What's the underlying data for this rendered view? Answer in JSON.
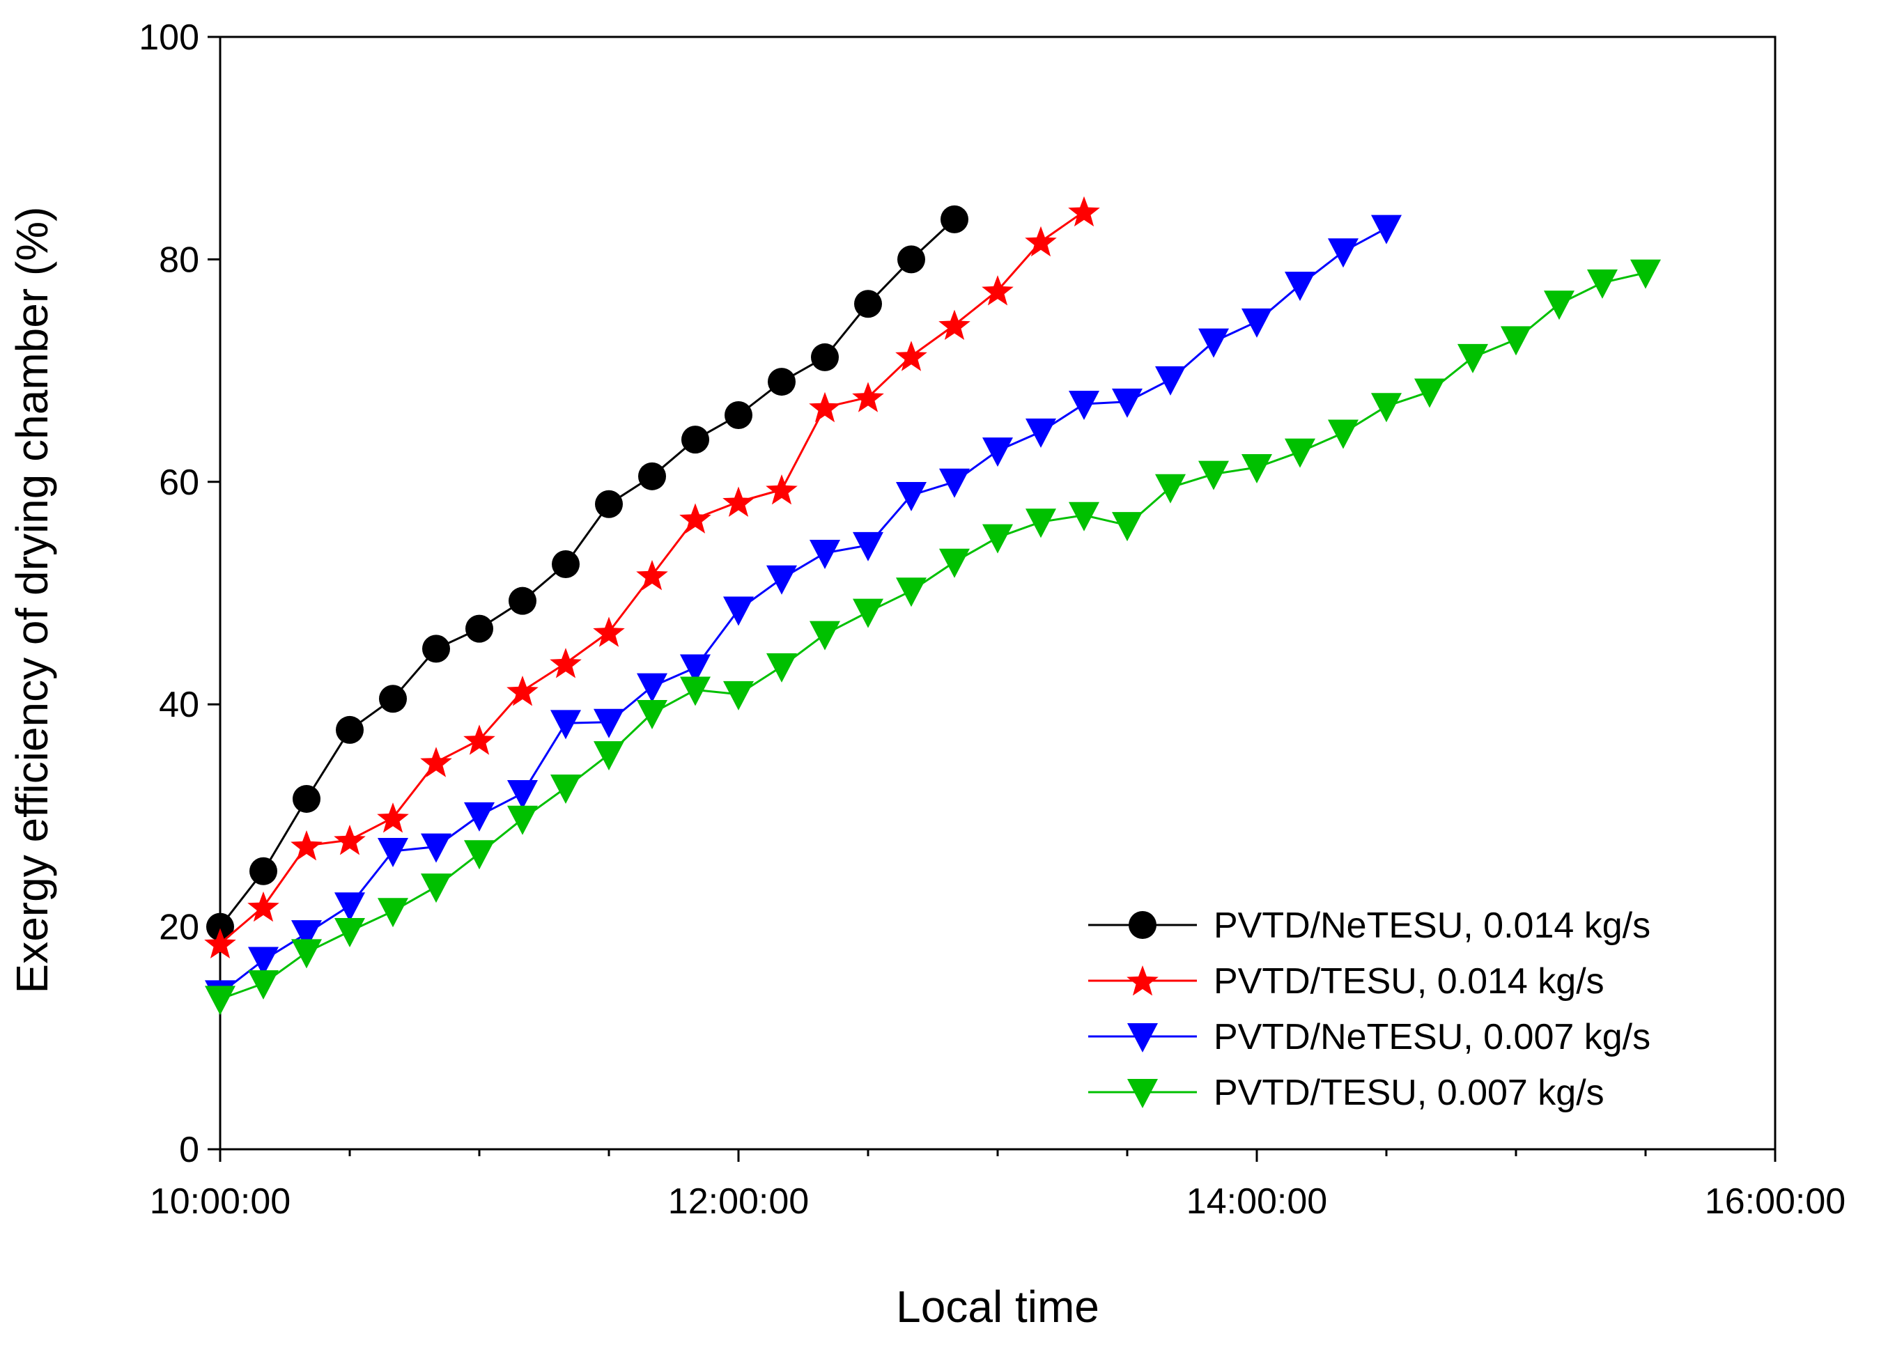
{
  "chart_data": {
    "type": "line",
    "title": "",
    "xlabel": "Local time",
    "ylabel": "Exergy efficiency of drying chamber (%)",
    "xlim": [
      0,
      360
    ],
    "ylim": [
      0,
      100
    ],
    "x_ticks": [
      {
        "value": 0,
        "label": "10:00:00"
      },
      {
        "value": 120,
        "label": "12:00:00"
      },
      {
        "value": 240,
        "label": "14:00:00"
      },
      {
        "value": 360,
        "label": "16:00:00"
      }
    ],
    "x_minor_ticks": [
      30,
      60,
      90,
      150,
      180,
      210,
      270,
      300,
      330
    ],
    "y_ticks": [
      0,
      20,
      40,
      60,
      80,
      100
    ],
    "x_unit": "minutes after 10:00:00",
    "legend_position": "bottom-right",
    "series": [
      {
        "name": "PVTD/NeTESU, 0.014 kg/s",
        "color": "#000000",
        "marker": "circle",
        "x": [
          0,
          10,
          20,
          30,
          40,
          50,
          60,
          70,
          80,
          90,
          100,
          110,
          120,
          130,
          140,
          150,
          160,
          170
        ],
        "y": [
          20,
          25,
          31.5,
          37.7,
          40.5,
          45,
          46.8,
          49.3,
          52.6,
          58,
          60.5,
          63.8,
          66,
          69,
          71.2,
          76,
          80,
          83.6
        ]
      },
      {
        "name": "PVTD/TESU, 0.014 kg/s",
        "color": "#ff0000",
        "marker": "star",
        "x": [
          0,
          10,
          20,
          30,
          40,
          50,
          60,
          70,
          80,
          90,
          100,
          110,
          120,
          130,
          140,
          150,
          160,
          170,
          180,
          190,
          200
        ],
        "y": [
          18.5,
          21.8,
          27.3,
          27.8,
          29.8,
          34.8,
          36.8,
          41.2,
          43.7,
          46.5,
          51.6,
          56.7,
          58.2,
          59.3,
          66.7,
          67.6,
          71.3,
          74.1,
          77.2,
          81.6,
          84.3
        ]
      },
      {
        "name": "PVTD/NeTESU, 0.007 kg/s",
        "color": "#0000ff",
        "marker": "triangle-down",
        "x": [
          0,
          10,
          20,
          30,
          40,
          50,
          60,
          70,
          80,
          90,
          100,
          110,
          120,
          130,
          140,
          150,
          160,
          170,
          180,
          190,
          200,
          210,
          220,
          230,
          240,
          250,
          260,
          270
        ],
        "y": [
          14,
          17,
          19.4,
          21.9,
          26.8,
          27.2,
          30,
          32,
          38.3,
          38.4,
          41.6,
          43.3,
          48.5,
          51.3,
          53.6,
          54.3,
          58.8,
          60,
          62.8,
          64.5,
          67,
          67.2,
          69.2,
          72.6,
          74.4,
          77.7,
          80.7,
          82.8
        ]
      },
      {
        "name": "PVTD/TESU, 0.007 kg/s",
        "color": "#00c000",
        "marker": "triangle-down",
        "x": [
          0,
          10,
          20,
          30,
          40,
          50,
          60,
          70,
          80,
          90,
          100,
          110,
          120,
          130,
          140,
          150,
          160,
          170,
          180,
          190,
          200,
          210,
          220,
          230,
          240,
          250,
          260,
          270,
          280,
          290,
          300,
          310,
          320,
          330
        ],
        "y": [
          13.5,
          14.9,
          17.7,
          19.6,
          21.4,
          23.6,
          26.6,
          29.7,
          32.5,
          35.5,
          39.2,
          41.3,
          40.9,
          43.4,
          46.3,
          48.3,
          50.2,
          52.8,
          55,
          56.4,
          57,
          56.1,
          59.5,
          60.7,
          61.3,
          62.7,
          64.4,
          66.8,
          68.1,
          71.2,
          72.8,
          76,
          77.9,
          78.8
        ]
      }
    ]
  }
}
